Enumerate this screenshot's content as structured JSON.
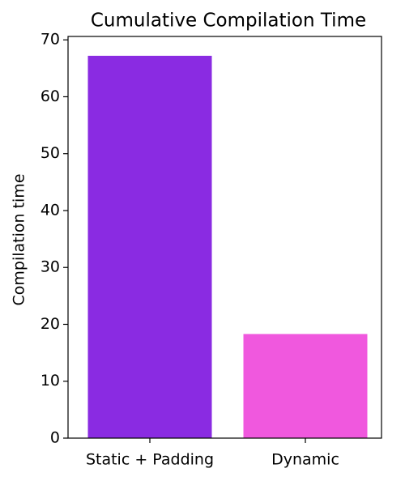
{
  "chart_data": {
    "type": "bar",
    "title": "Cumulative Compilation Time",
    "y_label": "Compilation time",
    "categories": [
      "Static + Padding",
      "Dynamic"
    ],
    "values": [
      67.2,
      18.3
    ],
    "colors": [
      "#8a2be2",
      "#f058de"
    ],
    "ylim": [
      0,
      70.6
    ],
    "yticks": [
      0,
      10,
      20,
      30,
      40,
      50,
      60,
      70
    ],
    "grid": false
  }
}
